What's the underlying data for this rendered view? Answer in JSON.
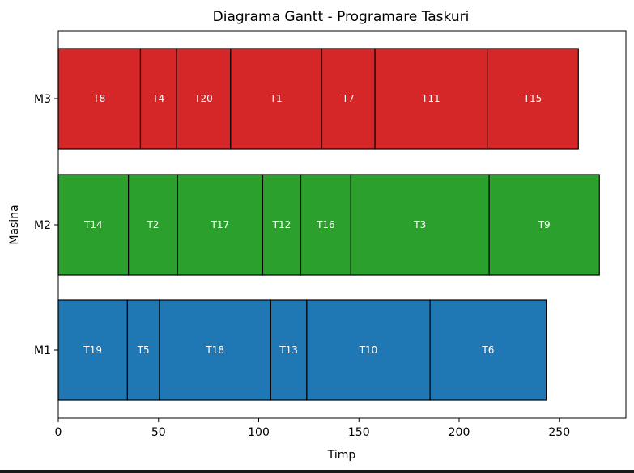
{
  "chart_data": {
    "type": "gantt",
    "title": "Diagrama Gantt - Programare Taskuri",
    "xlabel": "Timp",
    "ylabel": "Masina",
    "xlim": [
      0,
      284
    ],
    "x_ticks": [
      0,
      50,
      100,
      150,
      200,
      250
    ],
    "rows": [
      {
        "name": "M1",
        "color": "#1f77b4",
        "tasks": [
          {
            "label": "T19",
            "start": 0,
            "end": 34.5
          },
          {
            "label": "T5",
            "start": 34.5,
            "end": 50.5
          },
          {
            "label": "T18",
            "start": 50.5,
            "end": 106
          },
          {
            "label": "T13",
            "start": 106,
            "end": 124
          },
          {
            "label": "T10",
            "start": 124,
            "end": 185.5
          },
          {
            "label": "T6",
            "start": 185.5,
            "end": 243.5
          }
        ]
      },
      {
        "name": "M2",
        "color": "#2ca02c",
        "tasks": [
          {
            "label": "T14",
            "start": 0,
            "end": 35
          },
          {
            "label": "T2",
            "start": 35,
            "end": 59.5
          },
          {
            "label": "T17",
            "start": 59.5,
            "end": 102
          },
          {
            "label": "T12",
            "start": 102,
            "end": 121
          },
          {
            "label": "T16",
            "start": 121,
            "end": 146
          },
          {
            "label": "T3",
            "start": 146,
            "end": 215
          },
          {
            "label": "T9",
            "start": 215,
            "end": 270
          }
        ]
      },
      {
        "name": "M3",
        "color": "#d62728",
        "tasks": [
          {
            "label": "T8",
            "start": 0,
            "end": 41
          },
          {
            "label": "T4",
            "start": 41,
            "end": 59
          },
          {
            "label": "T20",
            "start": 59,
            "end": 86
          },
          {
            "label": "T1",
            "start": 86,
            "end": 131.5
          },
          {
            "label": "T7",
            "start": 131.5,
            "end": 158
          },
          {
            "label": "T11",
            "start": 158,
            "end": 214
          },
          {
            "label": "T15",
            "start": 214,
            "end": 259.5
          }
        ]
      }
    ],
    "grid": false,
    "legend": "none"
  }
}
